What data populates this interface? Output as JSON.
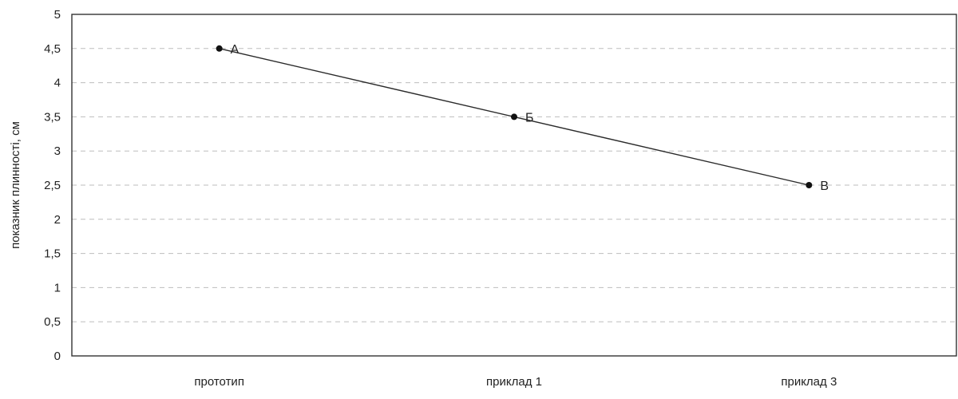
{
  "chart_data": {
    "type": "line",
    "title": "",
    "xlabel": "",
    "ylabel": "показник плинності, см",
    "categories": [
      "прототип",
      "приклад 1",
      "приклад 3"
    ],
    "yticks": [
      "0",
      "0,5",
      "1",
      "1,5",
      "2",
      "2,5",
      "3",
      "3,5",
      "4",
      "4,5",
      "5"
    ],
    "ylim": [
      0,
      5
    ],
    "grid": true,
    "legend": "none",
    "series": [
      {
        "values": [
          4.5,
          3.5,
          2.5
        ],
        "point_labels": [
          "А",
          "Б",
          "В"
        ]
      }
    ]
  }
}
